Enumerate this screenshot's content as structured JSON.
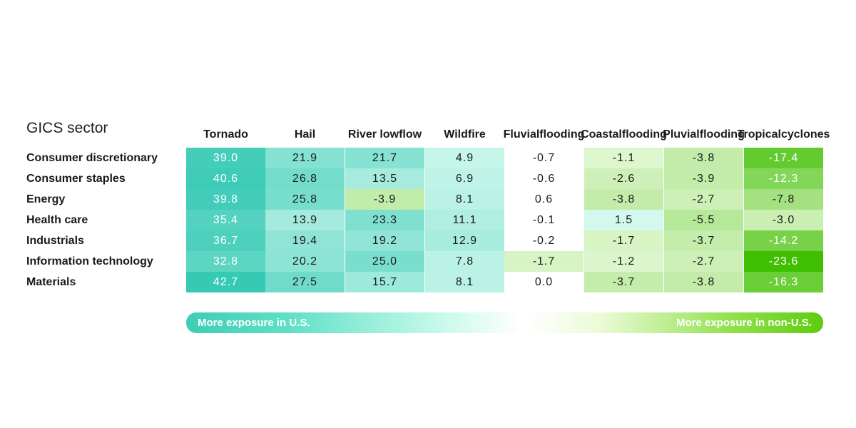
{
  "table_title": "GICS sector",
  "legend": {
    "us_label": "More exposure in U.S.",
    "non_us_label": "More exposure in non-U.S."
  },
  "colors": {
    "us_strong": "#35c9b4",
    "us_light": "#d9fbf1",
    "non_us_strong": "#3fbf00",
    "non_us_light": "#f0fce4",
    "neutral": "#ffffff"
  },
  "chart_data": {
    "type": "heatmap",
    "title": "",
    "row_header": "GICS sector",
    "columns": [
      {
        "line1": "Tornado",
        "line2": ""
      },
      {
        "line1": "Hail",
        "line2": ""
      },
      {
        "line1": "River low",
        "line2": "flow"
      },
      {
        "line1": "Wildfire",
        "line2": ""
      },
      {
        "line1": "Fluvial",
        "line2": "flooding"
      },
      {
        "line1": "Coastal",
        "line2": "flooding"
      },
      {
        "line1": "Pluvial",
        "line2": "flooding"
      },
      {
        "line1": "Tropical",
        "line2": "cyclones"
      }
    ],
    "rows": [
      {
        "name": "Consumer discretionary",
        "values": [
          "39.0",
          "21.9",
          "21.7",
          "4.9",
          "-0.7",
          "-1.1",
          "-3.8",
          "-17.4"
        ]
      },
      {
        "name": "Consumer staples",
        "values": [
          "40.6",
          "26.8",
          "13.5",
          "6.9",
          "-0.6",
          "-2.6",
          "-3.9",
          "-12.3"
        ]
      },
      {
        "name": "Energy",
        "values": [
          "39.8",
          "25.8",
          "-3.9",
          "8.1",
          "0.6",
          "-3.8",
          "-2.7",
          "-7.8"
        ]
      },
      {
        "name": "Health care",
        "values": [
          "35.4",
          "13.9",
          "23.3",
          "11.1",
          "-0.1",
          "1.5",
          "-5.5",
          "-3.0"
        ]
      },
      {
        "name": "Industrials",
        "values": [
          "36.7",
          "19.4",
          "19.2",
          "12.9",
          "-0.2",
          "-1.7",
          "-3.7",
          "-14.2"
        ]
      },
      {
        "name": "Information technology",
        "values": [
          "32.8",
          "20.2",
          "25.0",
          "7.8",
          "-1.7",
          "-1.2",
          "-2.7",
          "-23.6"
        ]
      },
      {
        "name": "Materials",
        "values": [
          "42.7",
          "27.5",
          "15.7",
          "8.1",
          "0.0",
          "-3.7",
          "-3.8",
          "-16.3"
        ]
      }
    ]
  }
}
